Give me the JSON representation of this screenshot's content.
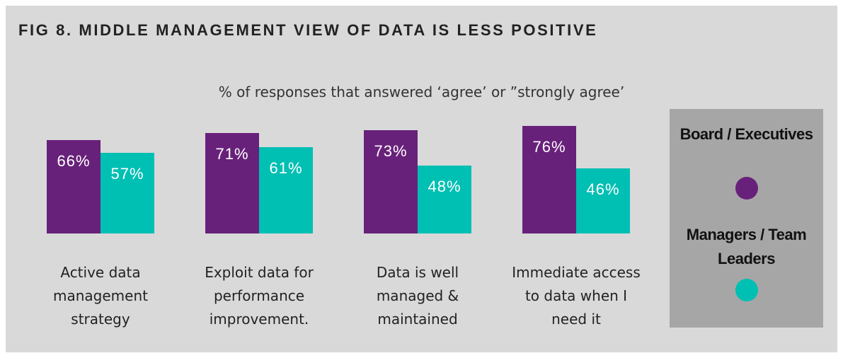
{
  "chart_data": {
    "type": "bar",
    "title": "FIG 8. MIDDLE MANAGEMENT VIEW OF DATA IS LESS POSITIVE",
    "subtitle": "% of responses that answered ‘agree’ or ”strongly agree’",
    "categories": [
      "Active data management strategy",
      "Exploit data for performance improvement.",
      "Data is well managed & maintained",
      "Immediate access to data when I need it"
    ],
    "series": [
      {
        "name": "Board / Executives",
        "color": "#68217a",
        "values": [
          66,
          71,
          73,
          76
        ],
        "value_labels": [
          "66%",
          "71%",
          "73%",
          "76%"
        ]
      },
      {
        "name": "Managers / Team Leaders",
        "color": "#00bfb3",
        "values": [
          57,
          61,
          48,
          46
        ],
        "value_labels": [
          "57%",
          "61%",
          "48%",
          "46%"
        ]
      }
    ]
  }
}
